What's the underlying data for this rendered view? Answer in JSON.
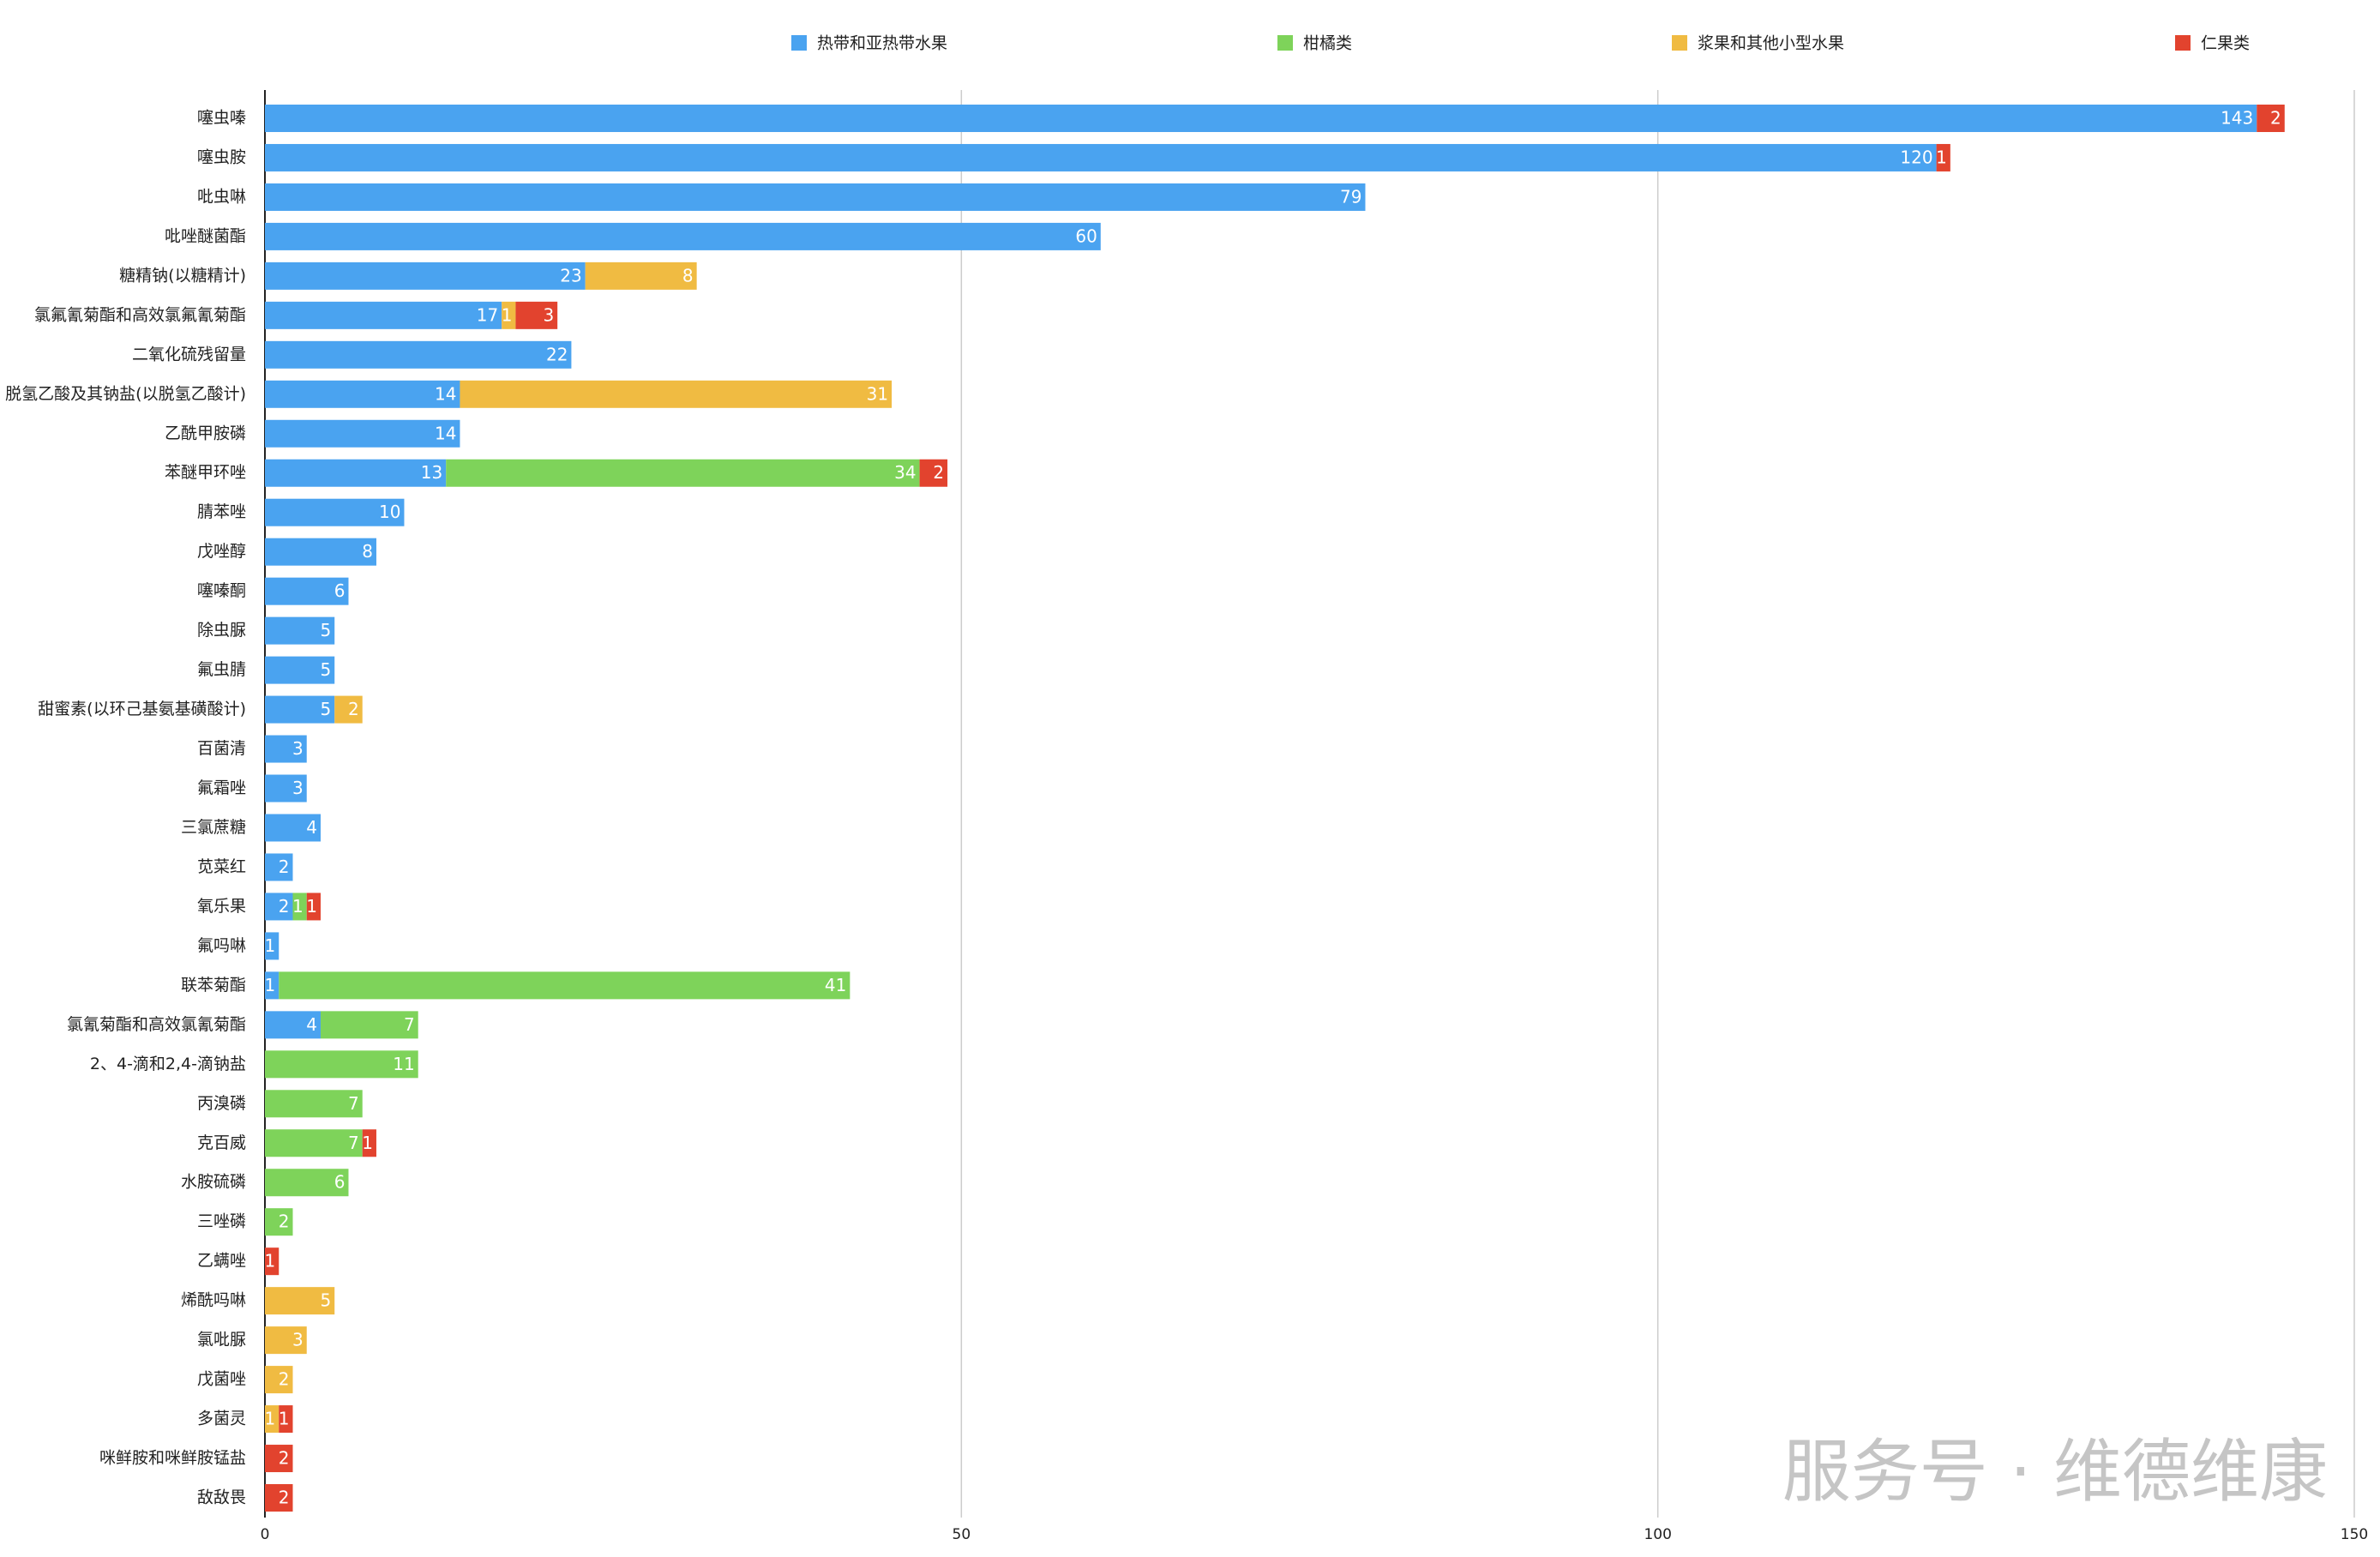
{
  "chart_data": {
    "type": "stacked-barh",
    "categories": [
      "噻虫嗪",
      "噻虫胺",
      "吡虫啉",
      "吡唑醚菌酯",
      "糖精钠(以糖精计)",
      "氯氟氰菊酯和高效氯氟氰菊酯",
      "二氧化硫残留量",
      "脱氢乙酸及其钠盐(以脱氢乙酸计)",
      "乙酰甲胺磷",
      "苯醚甲环唑",
      "腈苯唑",
      "戊唑醇",
      "噻嗪酮",
      "除虫脲",
      "氟虫腈",
      "甜蜜素(以环己基氨基磺酸计)",
      "百菌清",
      "氟霜唑",
      "三氯蔗糖",
      "苋菜红",
      "氧乐果",
      "氟吗啉",
      "联苯菊酯",
      "氯氰菊酯和高效氯氰菊酯",
      "2、4-滴和2,4-滴钠盐",
      "丙溴磷",
      "克百威",
      "水胺硫磷",
      "三唑磷",
      "乙螨唑",
      "烯酰吗啉",
      "氯吡脲",
      "戊菌唑",
      "多菌灵",
      "咪鲜胺和咪鲜胺锰盐",
      "敌敌畏"
    ],
    "series": [
      {
        "name": "热带和亚热带水果",
        "color": "#4aa3f0",
        "values": [
          143,
          120,
          79,
          60,
          23,
          17,
          22,
          14,
          14,
          13,
          10,
          8,
          6,
          5,
          5,
          5,
          3,
          3,
          4,
          2,
          2,
          1,
          1,
          4,
          null,
          null,
          null,
          null,
          null,
          null,
          null,
          null,
          null,
          null,
          null,
          null
        ]
      },
      {
        "name": "柑橘类",
        "color": "#7ed35a",
        "values": [
          null,
          null,
          null,
          null,
          null,
          null,
          null,
          null,
          null,
          34,
          null,
          null,
          null,
          null,
          null,
          null,
          null,
          null,
          null,
          null,
          1,
          null,
          41,
          7,
          11,
          7,
          7,
          6,
          2,
          null,
          null,
          null,
          null,
          null,
          null,
          null
        ]
      },
      {
        "name": "浆果和其他小型水果",
        "color": "#f0bb42",
        "values": [
          null,
          null,
          null,
          null,
          8,
          1,
          null,
          31,
          null,
          null,
          null,
          null,
          null,
          null,
          null,
          2,
          null,
          null,
          null,
          null,
          null,
          null,
          null,
          null,
          null,
          null,
          null,
          null,
          null,
          null,
          5,
          3,
          2,
          1,
          null,
          null
        ]
      },
      {
        "name": "仁果类",
        "color": "#e2432e",
        "values": [
          2,
          1,
          null,
          null,
          null,
          3,
          null,
          null,
          null,
          2,
          null,
          null,
          null,
          null,
          null,
          null,
          null,
          null,
          null,
          null,
          1,
          null,
          null,
          null,
          null,
          null,
          1,
          null,
          null,
          1,
          null,
          null,
          null,
          1,
          2,
          2
        ]
      }
    ],
    "xlim": [
      0,
      150
    ],
    "xticks": [
      0,
      50,
      100,
      150
    ],
    "grid": true,
    "legend": "top",
    "watermark": "服务号 · 维德维康"
  }
}
